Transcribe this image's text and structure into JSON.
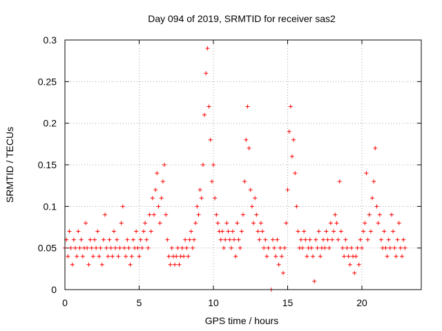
{
  "chart_data": {
    "type": "scatter",
    "title": "Day 094 of 2019, SRMTID for receiver sas2",
    "xlabel": "GPS time / hours",
    "ylabel": "SRMTID / TECUs",
    "xlim": [
      0,
      24
    ],
    "ylim": [
      0,
      0.3
    ],
    "xticks": [
      0,
      5,
      10,
      15,
      20
    ],
    "yticks": [
      0,
      0.05,
      0.1,
      0.15,
      0.2,
      0.25,
      0.3
    ],
    "xtick_labels": [
      "0",
      "5",
      "10",
      "15",
      "20"
    ],
    "ytick_labels": [
      "0",
      "0.05",
      "0.1",
      "0.15",
      "0.2",
      "0.25",
      "0.3"
    ],
    "grid": true,
    "marker": "+",
    "color": "#ff0000",
    "series": [
      {
        "name": "SRMTID",
        "points": [
          [
            0.0,
            0.05
          ],
          [
            0.1,
            0.06
          ],
          [
            0.2,
            0.04
          ],
          [
            0.3,
            0.07
          ],
          [
            0.4,
            0.05
          ],
          [
            0.5,
            0.03
          ],
          [
            0.6,
            0.06
          ],
          [
            0.7,
            0.05
          ],
          [
            0.8,
            0.04
          ],
          [
            0.9,
            0.07
          ],
          [
            1.0,
            0.05
          ],
          [
            1.1,
            0.06
          ],
          [
            1.2,
            0.04
          ],
          [
            1.3,
            0.05
          ],
          [
            1.4,
            0.08
          ],
          [
            1.5,
            0.05
          ],
          [
            1.6,
            0.03
          ],
          [
            1.7,
            0.06
          ],
          [
            1.8,
            0.05
          ],
          [
            1.9,
            0.04
          ],
          [
            2.0,
            0.06
          ],
          [
            2.1,
            0.05
          ],
          [
            2.2,
            0.07
          ],
          [
            2.3,
            0.04
          ],
          [
            2.4,
            0.05
          ],
          [
            2.5,
            0.03
          ],
          [
            2.6,
            0.06
          ],
          [
            2.7,
            0.09
          ],
          [
            2.8,
            0.05
          ],
          [
            2.9,
            0.04
          ],
          [
            3.0,
            0.06
          ],
          [
            3.1,
            0.05
          ],
          [
            3.2,
            0.04
          ],
          [
            3.3,
            0.07
          ],
          [
            3.4,
            0.05
          ],
          [
            3.5,
            0.06
          ],
          [
            3.6,
            0.04
          ],
          [
            3.7,
            0.05
          ],
          [
            3.8,
            0.08
          ],
          [
            3.9,
            0.1
          ],
          [
            4.0,
            0.05
          ],
          [
            4.1,
            0.04
          ],
          [
            4.2,
            0.06
          ],
          [
            4.3,
            0.05
          ],
          [
            4.4,
            0.03
          ],
          [
            4.5,
            0.04
          ],
          [
            4.6,
            0.06
          ],
          [
            4.7,
            0.05
          ],
          [
            4.8,
            0.07
          ],
          [
            4.9,
            0.05
          ],
          [
            5.0,
            0.04
          ],
          [
            5.1,
            0.06
          ],
          [
            5.2,
            0.05
          ],
          [
            5.3,
            0.07
          ],
          [
            5.4,
            0.08
          ],
          [
            5.5,
            0.06
          ],
          [
            5.6,
            0.05
          ],
          [
            5.7,
            0.09
          ],
          [
            5.8,
            0.07
          ],
          [
            5.9,
            0.11
          ],
          [
            6.0,
            0.09
          ],
          [
            6.1,
            0.12
          ],
          [
            6.2,
            0.14
          ],
          [
            6.3,
            0.1
          ],
          [
            6.4,
            0.08
          ],
          [
            6.5,
            0.11
          ],
          [
            6.6,
            0.13
          ],
          [
            6.7,
            0.15
          ],
          [
            6.8,
            0.09
          ],
          [
            6.9,
            0.06
          ],
          [
            7.0,
            0.04
          ],
          [
            7.1,
            0.03
          ],
          [
            7.2,
            0.05
          ],
          [
            7.3,
            0.04
          ],
          [
            7.4,
            0.03
          ],
          [
            7.5,
            0.04
          ],
          [
            7.6,
            0.05
          ],
          [
            7.7,
            0.03
          ],
          [
            7.8,
            0.04
          ],
          [
            7.9,
            0.05
          ],
          [
            8.0,
            0.04
          ],
          [
            8.1,
            0.06
          ],
          [
            8.2,
            0.05
          ],
          [
            8.3,
            0.04
          ],
          [
            8.4,
            0.06
          ],
          [
            8.5,
            0.07
          ],
          [
            8.6,
            0.05
          ],
          [
            8.7,
            0.06
          ],
          [
            8.8,
            0.08
          ],
          [
            8.9,
            0.1
          ],
          [
            9.0,
            0.09
          ],
          [
            9.1,
            0.12
          ],
          [
            9.2,
            0.11
          ],
          [
            9.3,
            0.15
          ],
          [
            9.4,
            0.21
          ],
          [
            9.5,
            0.26
          ],
          [
            9.6,
            0.29
          ],
          [
            9.7,
            0.22
          ],
          [
            9.8,
            0.18
          ],
          [
            9.9,
            0.13
          ],
          [
            10.0,
            0.15
          ],
          [
            10.1,
            0.11
          ],
          [
            10.2,
            0.09
          ],
          [
            10.3,
            0.08
          ],
          [
            10.4,
            0.07
          ],
          [
            10.5,
            0.06
          ],
          [
            10.6,
            0.07
          ],
          [
            10.7,
            0.05
          ],
          [
            10.8,
            0.06
          ],
          [
            10.9,
            0.08
          ],
          [
            11.0,
            0.07
          ],
          [
            11.1,
            0.06
          ],
          [
            11.2,
            0.05
          ],
          [
            11.3,
            0.07
          ],
          [
            11.4,
            0.06
          ],
          [
            11.5,
            0.04
          ],
          [
            11.6,
            0.08
          ],
          [
            11.7,
            0.06
          ],
          [
            11.8,
            0.05
          ],
          [
            11.9,
            0.07
          ],
          [
            12.0,
            0.09
          ],
          [
            12.1,
            0.13
          ],
          [
            12.2,
            0.18
          ],
          [
            12.3,
            0.22
          ],
          [
            12.4,
            0.17
          ],
          [
            12.5,
            0.12
          ],
          [
            12.6,
            0.1
          ],
          [
            12.7,
            0.08
          ],
          [
            12.8,
            0.11
          ],
          [
            12.9,
            0.09
          ],
          [
            13.0,
            0.07
          ],
          [
            13.1,
            0.06
          ],
          [
            13.2,
            0.08
          ],
          [
            13.3,
            0.07
          ],
          [
            13.4,
            0.05
          ],
          [
            13.5,
            0.06
          ],
          [
            13.6,
            0.04
          ],
          [
            13.7,
            0.05
          ],
          [
            13.9,
            0.0
          ],
          [
            14.0,
            0.06
          ],
          [
            14.1,
            0.05
          ],
          [
            14.2,
            0.04
          ],
          [
            14.3,
            0.06
          ],
          [
            14.4,
            0.03
          ],
          [
            14.5,
            0.05
          ],
          [
            14.6,
            0.04
          ],
          [
            14.7,
            0.02
          ],
          [
            14.8,
            0.05
          ],
          [
            14.9,
            0.08
          ],
          [
            15.0,
            0.12
          ],
          [
            15.1,
            0.19
          ],
          [
            15.2,
            0.22
          ],
          [
            15.3,
            0.16
          ],
          [
            15.4,
            0.18
          ],
          [
            15.5,
            0.14
          ],
          [
            15.6,
            0.1
          ],
          [
            15.7,
            0.07
          ],
          [
            15.8,
            0.05
          ],
          [
            15.9,
            0.06
          ],
          [
            16.0,
            0.05
          ],
          [
            16.1,
            0.07
          ],
          [
            16.2,
            0.06
          ],
          [
            16.3,
            0.04
          ],
          [
            16.4,
            0.05
          ],
          [
            16.5,
            0.06
          ],
          [
            16.6,
            0.05
          ],
          [
            16.7,
            0.04
          ],
          [
            16.8,
            0.01
          ],
          [
            16.9,
            0.06
          ],
          [
            17.0,
            0.05
          ],
          [
            17.1,
            0.07
          ],
          [
            17.2,
            0.04
          ],
          [
            17.3,
            0.05
          ],
          [
            17.4,
            0.06
          ],
          [
            17.5,
            0.05
          ],
          [
            17.6,
            0.07
          ],
          [
            17.7,
            0.06
          ],
          [
            17.8,
            0.05
          ],
          [
            17.9,
            0.08
          ],
          [
            18.0,
            0.06
          ],
          [
            18.1,
            0.07
          ],
          [
            18.2,
            0.09
          ],
          [
            18.3,
            0.08
          ],
          [
            18.4,
            0.06
          ],
          [
            18.5,
            0.13
          ],
          [
            18.6,
            0.07
          ],
          [
            18.7,
            0.05
          ],
          [
            18.8,
            0.04
          ],
          [
            18.9,
            0.06
          ],
          [
            19.0,
            0.05
          ],
          [
            19.1,
            0.04
          ],
          [
            19.2,
            0.03
          ],
          [
            19.3,
            0.05
          ],
          [
            19.4,
            0.04
          ],
          [
            19.5,
            0.02
          ],
          [
            19.6,
            0.04
          ],
          [
            19.7,
            0.05
          ],
          [
            19.8,
            0.03
          ],
          [
            19.9,
            0.06
          ],
          [
            20.0,
            0.05
          ],
          [
            20.1,
            0.07
          ],
          [
            20.2,
            0.08
          ],
          [
            20.3,
            0.14
          ],
          [
            20.4,
            0.06
          ],
          [
            20.5,
            0.09
          ],
          [
            20.6,
            0.07
          ],
          [
            20.7,
            0.11
          ],
          [
            20.8,
            0.13
          ],
          [
            20.9,
            0.17
          ],
          [
            21.0,
            0.1
          ],
          [
            21.1,
            0.08
          ],
          [
            21.2,
            0.09
          ],
          [
            21.3,
            0.06
          ],
          [
            21.4,
            0.05
          ],
          [
            21.5,
            0.07
          ],
          [
            21.6,
            0.05
          ],
          [
            21.7,
            0.04
          ],
          [
            21.8,
            0.06
          ],
          [
            21.9,
            0.05
          ],
          [
            22.0,
            0.09
          ],
          [
            22.1,
            0.07
          ],
          [
            22.2,
            0.05
          ],
          [
            22.3,
            0.04
          ],
          [
            22.4,
            0.06
          ],
          [
            22.5,
            0.08
          ],
          [
            22.6,
            0.05
          ],
          [
            22.7,
            0.04
          ],
          [
            22.8,
            0.06
          ],
          [
            22.9,
            0.05
          ]
        ]
      }
    ]
  }
}
